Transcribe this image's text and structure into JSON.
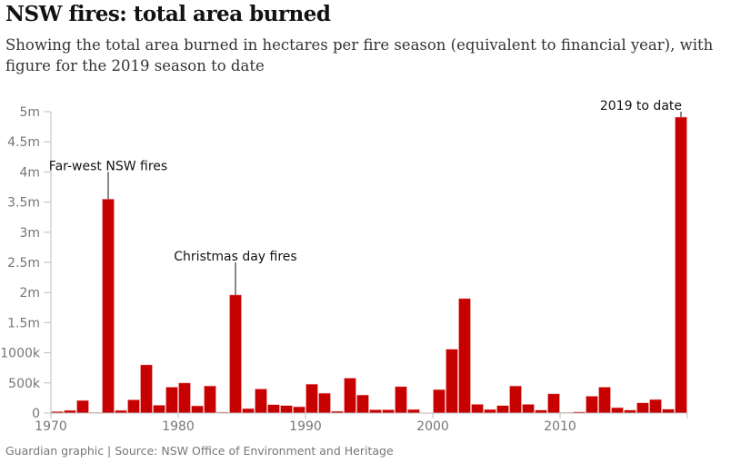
{
  "title": "NSW fires: total area burned",
  "subtitle": "Showing the total area burned in hectares per fire season (equivalent to financial year), with figure for the 2019 season to date",
  "source": "Guardian graphic | Source: NSW Office of Environment and Heritage",
  "chart_data": {
    "type": "bar",
    "bar_color": "#c70000",
    "x": [
      1970,
      1971,
      1972,
      1973,
      1974,
      1975,
      1976,
      1977,
      1978,
      1979,
      1980,
      1981,
      1982,
      1983,
      1984,
      1985,
      1986,
      1987,
      1988,
      1989,
      1990,
      1991,
      1992,
      1993,
      1994,
      1995,
      1996,
      1997,
      1998,
      1999,
      2000,
      2001,
      2002,
      2003,
      2004,
      2005,
      2006,
      2007,
      2008,
      2009,
      2010,
      2011,
      2012,
      2013,
      2014,
      2015,
      2016,
      2017,
      2018,
      2019
    ],
    "values": [
      25000,
      45000,
      210000,
      10000,
      3550000,
      45000,
      220000,
      800000,
      130000,
      430000,
      500000,
      120000,
      450000,
      15000,
      1960000,
      75000,
      400000,
      140000,
      125000,
      105000,
      480000,
      330000,
      30000,
      580000,
      300000,
      55000,
      55000,
      440000,
      60000,
      3000,
      390000,
      1060000,
      1900000,
      145000,
      60000,
      125000,
      450000,
      145000,
      50000,
      320000,
      10000,
      20000,
      280000,
      430000,
      90000,
      50000,
      170000,
      225000,
      65000,
      4910000
    ],
    "ylim": [
      0,
      5000000
    ],
    "xlim": [
      1970,
      2020
    ],
    "yticks": [
      {
        "v": 0,
        "label": "0"
      },
      {
        "v": 500000,
        "label": "500k"
      },
      {
        "v": 1000000,
        "label": "1000k"
      },
      {
        "v": 1500000,
        "label": "1.5m"
      },
      {
        "v": 2000000,
        "label": "2m"
      },
      {
        "v": 2500000,
        "label": "2.5m"
      },
      {
        "v": 3000000,
        "label": "3m"
      },
      {
        "v": 3500000,
        "label": "3.5m"
      },
      {
        "v": 4000000,
        "label": "4m"
      },
      {
        "v": 4500000,
        "label": "4.5m"
      },
      {
        "v": 5000000,
        "label": "5m"
      }
    ],
    "xticks": [
      {
        "v": 1970,
        "label": "1970"
      },
      {
        "v": 1980,
        "label": "1980"
      },
      {
        "v": 1990,
        "label": "1990"
      },
      {
        "v": 2000,
        "label": "2000"
      },
      {
        "v": 2010,
        "label": "2010"
      }
    ],
    "annotations": [
      {
        "label": "Far-west NSW fires",
        "year": 1974,
        "value": 3550000,
        "label_value": 4000000,
        "anchor": "middle"
      },
      {
        "label": "Christmas day fires",
        "year": 1984,
        "value": 1960000,
        "label_value": 2500000,
        "anchor": "middle"
      },
      {
        "label": "2019 to date",
        "year": 2019,
        "value": 4910000,
        "label_value": 5000000,
        "anchor": "end"
      }
    ],
    "grid": false
  }
}
